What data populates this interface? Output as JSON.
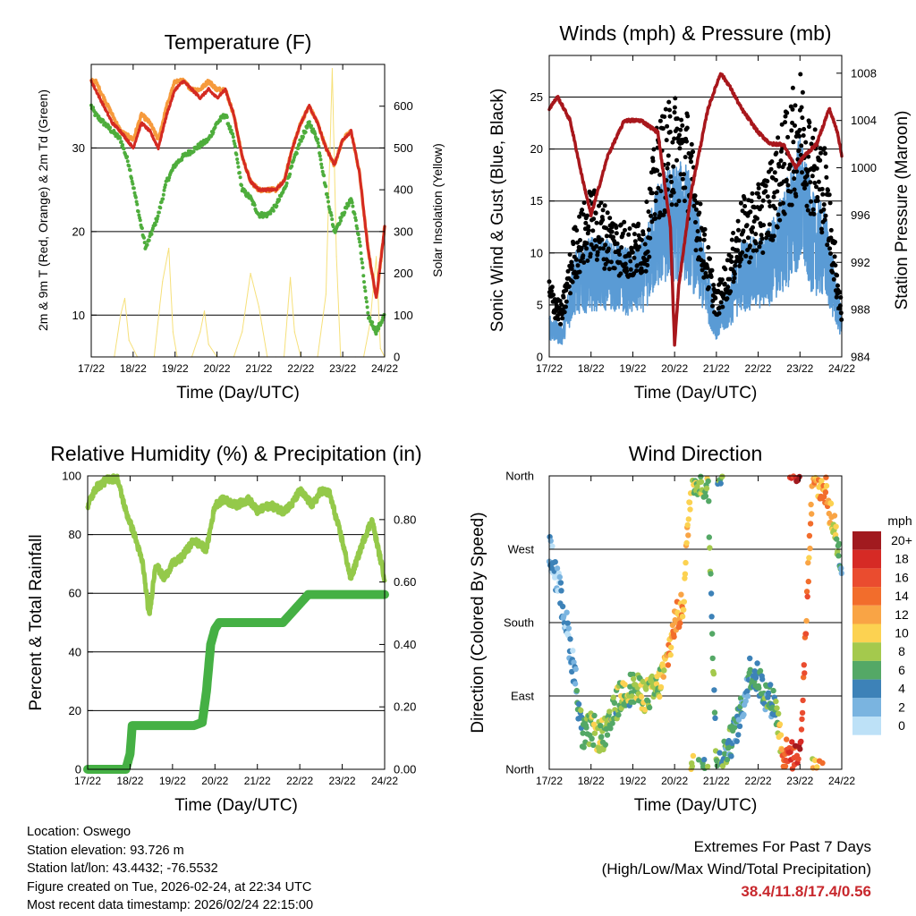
{
  "colors": {
    "temp_2m": "#d42a22",
    "temp_9m": "#f69a3c",
    "dewpoint": "#4ead3c",
    "solar": "#f6e07a",
    "gust": "#000000",
    "wind": "#5a9bd5",
    "pressure": "#a8171c",
    "rh": "#94c94a",
    "precip": "#45b044",
    "extremes": "#c8282d"
  },
  "info": {
    "location": "Location: Oswego",
    "elevation": "Station elevation: 93.726 m",
    "latlon": "Station lat/lon: 43.4432; -76.5532",
    "created": "Figure created on Tue, 2026-02-24, at 22:34 UTC",
    "recent": "Most recent data timestamp: 2026/02/24 22:15:00"
  },
  "extremes": {
    "title": "Extremes For Past 7 Days",
    "subtitle": "(High/Low/Max Wind/Total Precipitation)",
    "values": "38.4/11.8/17.4/0.56"
  },
  "chart_data": [
    {
      "id": "temperature",
      "type": "line",
      "title": "Temperature (F)",
      "xlabel": "Time (Day/UTC)",
      "ylabel": "2m & 9m T (Red, Orange) & 2m Td (Green)",
      "y2label": "Solar Insolation (Yellow)",
      "xticks": [
        "17/22",
        "18/22",
        "19/22",
        "20/22",
        "21/22",
        "22/22",
        "23/22",
        "24/22"
      ],
      "ylim": [
        5,
        40
      ],
      "yticks": [
        10,
        20,
        30
      ],
      "y2lim": [
        0,
        700
      ],
      "y2ticks": [
        0,
        100,
        200,
        300,
        400,
        500,
        600
      ],
      "series": [
        {
          "name": "2m T",
          "color_key": "temp_2m",
          "x": [
            0,
            0.1,
            0.3,
            0.5,
            0.7,
            1.0,
            1.2,
            1.4,
            1.6,
            1.8,
            2.0,
            2.2,
            2.4,
            2.6,
            2.8,
            3.0,
            3.2,
            3.4,
            3.6,
            3.8,
            4.0,
            4.2,
            4.4,
            4.6,
            4.8,
            5.0,
            5.2,
            5.4,
            5.6,
            5.8,
            6.0,
            6.2,
            6.4,
            6.6,
            6.8,
            7.0
          ],
          "values": [
            38,
            37,
            35,
            33,
            32,
            30,
            33,
            32,
            30,
            34,
            37,
            38,
            37,
            36,
            37,
            36,
            37,
            34,
            29,
            26,
            25,
            25,
            25,
            26,
            30,
            33,
            35,
            33,
            30,
            28,
            31,
            32,
            27,
            18,
            12,
            20.5
          ]
        },
        {
          "name": "9m T",
          "color_key": "temp_9m",
          "x": [
            0,
            0.1,
            0.3,
            0.5,
            0.7,
            1.0,
            1.2,
            1.4,
            1.6,
            1.8,
            2.0,
            2.2,
            2.4,
            2.6,
            2.8,
            3.0,
            3.2,
            3.4,
            3.6,
            3.8,
            4.0,
            4.2,
            4.4,
            4.6,
            4.8,
            5.0,
            5.2,
            5.4,
            5.6,
            5.8,
            6.0,
            6.2,
            6.4,
            6.6,
            6.8,
            7.0
          ],
          "values": [
            38,
            38,
            36,
            34,
            32,
            31,
            34,
            33,
            31,
            35,
            38,
            38,
            37,
            37,
            38,
            37,
            37,
            34,
            29,
            26,
            25,
            25,
            25,
            26,
            30,
            33,
            35,
            33,
            30,
            28,
            31,
            32,
            27,
            18,
            12,
            20.5
          ]
        },
        {
          "name": "2m Td",
          "color_key": "dewpoint",
          "x": [
            0,
            0.1,
            0.3,
            0.5,
            0.7,
            0.9,
            1.1,
            1.3,
            1.6,
            1.8,
            2.0,
            2.2,
            2.5,
            2.8,
            3.0,
            3.2,
            3.4,
            3.6,
            3.8,
            4.0,
            4.2,
            4.4,
            4.6,
            4.8,
            5.0,
            5.2,
            5.4,
            5.6,
            5.8,
            6.0,
            6.2,
            6.4,
            6.6,
            6.8,
            7.0
          ],
          "values": [
            35,
            34,
            33,
            32,
            31,
            28,
            23,
            18,
            22,
            26,
            28,
            29,
            30,
            31,
            33,
            34,
            31,
            25,
            24,
            22,
            22,
            23,
            25,
            28,
            31,
            33,
            31,
            25,
            20,
            22,
            24,
            19,
            10,
            8,
            10
          ]
        },
        {
          "name": "Solar Insolation",
          "color_key": "solar",
          "axis": "y2",
          "x": [
            0.55,
            0.7,
            0.8,
            0.9,
            1.1,
            1.5,
            1.7,
            1.85,
            1.95,
            2.05,
            2.4,
            2.6,
            2.7,
            2.8,
            3.0,
            3.4,
            3.6,
            3.8,
            4.0,
            4.2,
            4.4,
            4.6,
            4.75,
            4.85,
            5.0,
            5.2,
            5.4,
            5.6,
            5.75,
            5.85,
            5.95,
            6.1,
            6.3,
            6.5,
            6.65,
            6.8,
            6.9,
            7.0
          ],
          "values": [
            0,
            100,
            140,
            40,
            0,
            0,
            180,
            260,
            60,
            0,
            0,
            60,
            110,
            30,
            0,
            0,
            60,
            200,
            120,
            0,
            0,
            0,
            190,
            60,
            0,
            0,
            0,
            150,
            690,
            240,
            0,
            0,
            0,
            0,
            80,
            240,
            20,
            0
          ]
        }
      ]
    },
    {
      "id": "winds",
      "type": "scatter",
      "title": "Winds (mph) & Pressure (mb)",
      "xlabel": "Time (Day/UTC)",
      "ylabel": "Sonic Wind & Gust (Blue, Black)",
      "y2label": "Station Pressure (Maroon)",
      "xticks": [
        "17/22",
        "18/22",
        "19/22",
        "20/22",
        "21/22",
        "22/22",
        "23/22",
        "24/22"
      ],
      "ylim": [
        0,
        29
      ],
      "yticks": [
        0,
        5,
        10,
        15,
        20,
        25
      ],
      "y2lim": [
        984,
        1009.5
      ],
      "y2ticks": [
        984,
        988,
        992,
        996,
        1000,
        1004,
        1008
      ],
      "series": [
        {
          "name": "Gust",
          "color_key": "gust",
          "x": [
            0,
            0.3,
            0.6,
            1.0,
            1.5,
            2.0,
            2.3,
            2.6,
            3.0,
            3.3,
            3.6,
            4.0,
            4.3,
            4.6,
            5.0,
            5.3,
            5.6,
            6.0,
            6.3,
            6.6,
            7.0
          ],
          "values": [
            6,
            4,
            10,
            13,
            11,
            10,
            11,
            18,
            20,
            19,
            12,
            5,
            8,
            12,
            13,
            15,
            18,
            22,
            18,
            16,
            4
          ]
        },
        {
          "name": "Wind",
          "color_key": "wind",
          "x": [
            0,
            0.3,
            0.6,
            1.0,
            1.5,
            2.0,
            2.3,
            2.6,
            3.0,
            3.3,
            3.6,
            4.0,
            4.3,
            4.6,
            5.0,
            5.3,
            5.6,
            6.0,
            6.3,
            6.6,
            7.0
          ],
          "values": [
            3,
            2,
            7,
            8,
            8,
            7,
            8,
            12,
            13,
            13,
            9,
            3,
            5,
            8,
            8,
            9,
            11,
            15,
            11,
            10,
            3
          ]
        },
        {
          "name": "Station Pressure",
          "color_key": "pressure",
          "axis": "y2",
          "x": [
            0,
            0.2,
            0.5,
            0.8,
            1.0,
            1.4,
            1.8,
            2.2,
            2.6,
            2.9,
            3.0,
            3.1,
            3.4,
            3.8,
            4.1,
            4.3,
            4.6,
            5.0,
            5.3,
            5.6,
            5.9,
            6.1,
            6.4,
            6.7,
            6.9,
            7.0
          ],
          "values": [
            1005,
            1006,
            1004,
            999,
            996,
            1001,
            1004,
            1004,
            1003,
            995,
            985,
            990,
            998,
            1005,
            1008,
            1007,
            1005,
            1003,
            1002,
            1002,
            1000,
            1001,
            1002,
            1005,
            1003,
            1001
          ]
        }
      ]
    },
    {
      "id": "humidity",
      "type": "line",
      "title": "Relative Humidity (%) & Precipitation (in)",
      "xlabel": "Time (Day/UTC)",
      "ylabel": "Percent & Total Rainfall",
      "xticks": [
        "17/22",
        "18/22",
        "19/22",
        "20/22",
        "21/22",
        "22/22",
        "23/22",
        "24/22"
      ],
      "ylim": [
        0,
        100
      ],
      "yticks": [
        0,
        20,
        40,
        60,
        80,
        100
      ],
      "y2lim": [
        0,
        0.94
      ],
      "y2ticks": [
        "0.00",
        "0.20",
        "0.40",
        "0.60",
        "0.80"
      ],
      "series": [
        {
          "name": "Relative Humidity",
          "color_key": "rh",
          "x": [
            0,
            0.2,
            0.5,
            0.7,
            0.9,
            1.1,
            1.3,
            1.45,
            1.6,
            1.8,
            2.0,
            2.2,
            2.5,
            2.8,
            3.0,
            3.2,
            3.5,
            3.8,
            4.0,
            4.3,
            4.6,
            4.8,
            5.0,
            5.3,
            5.5,
            5.7,
            6.0,
            6.2,
            6.5,
            6.7,
            6.85,
            7.0
          ],
          "values": [
            90,
            96,
            99,
            99,
            88,
            80,
            70,
            52,
            70,
            65,
            70,
            72,
            78,
            75,
            90,
            92,
            90,
            92,
            88,
            90,
            88,
            90,
            95,
            90,
            95,
            94,
            78,
            65,
            78,
            85,
            75,
            65
          ]
        },
        {
          "name": "Total Precipitation",
          "color_key": "precip",
          "axis": "y2",
          "x": [
            0,
            0.9,
            1.0,
            1.05,
            1.3,
            2.5,
            2.7,
            2.8,
            2.9,
            3.0,
            3.1,
            3.3,
            3.5,
            4.6,
            4.8,
            5.0,
            5.2,
            6.0,
            7.0
          ],
          "values": [
            0,
            0,
            0.05,
            0.14,
            0.14,
            0.14,
            0.15,
            0.25,
            0.4,
            0.45,
            0.47,
            0.47,
            0.47,
            0.47,
            0.5,
            0.53,
            0.56,
            0.56,
            0.56
          ]
        }
      ]
    },
    {
      "id": "direction",
      "type": "scatter",
      "title": "Wind Direction",
      "xlabel": "Time (Day/UTC)",
      "ylabel": "Direction (Colored By Speed)",
      "xticks": [
        "17/22",
        "18/22",
        "19/22",
        "20/22",
        "21/22",
        "22/22",
        "23/22",
        "24/22"
      ],
      "ylim": [
        0,
        360
      ],
      "yticklabels": [
        "North",
        "East",
        "South",
        "West",
        "North"
      ],
      "legend": {
        "title": "mph",
        "labels": [
          "20+",
          "18",
          "16",
          "14",
          "12",
          "10",
          "8",
          "6",
          "4",
          "2",
          "0"
        ],
        "colors": [
          "#a11a1f",
          "#d62a25",
          "#ea4c2f",
          "#f26d2c",
          "#f9a445",
          "#fcd251",
          "#a4c94d",
          "#54a866",
          "#3d82b8",
          "#7ab4e0",
          "#bde1f7"
        ]
      },
      "series": [
        {
          "name": "Direction",
          "x": [
            0.0,
            0.2,
            0.4,
            0.6,
            0.8,
            1.0,
            1.2,
            1.4,
            1.6,
            1.8,
            2.0,
            2.3,
            2.6,
            2.8,
            3.0,
            3.2,
            3.4,
            3.6,
            3.8,
            4.0,
            4.2,
            4.4,
            4.6,
            4.8,
            5.0,
            5.2,
            5.4,
            5.6,
            6.0,
            6.3,
            6.6,
            6.8,
            7.0
          ],
          "values": [
            270,
            230,
            180,
            120,
            40,
            50,
            40,
            45,
            80,
            95,
            100,
            90,
            100,
            130,
            180,
            200,
            360,
            355,
            350,
            0,
            20,
            40,
            70,
            120,
            110,
            90,
            80,
            20,
            10,
            360,
            345,
            300,
            250
          ],
          "speeds": [
            3,
            2,
            2,
            3,
            7,
            7,
            8,
            7,
            7,
            8,
            7,
            8,
            8,
            11,
            12,
            12,
            10,
            7,
            7,
            6,
            5,
            5,
            4,
            4,
            6,
            5,
            5,
            14,
            18,
            11,
            12,
            10,
            4
          ]
        }
      ]
    }
  ]
}
